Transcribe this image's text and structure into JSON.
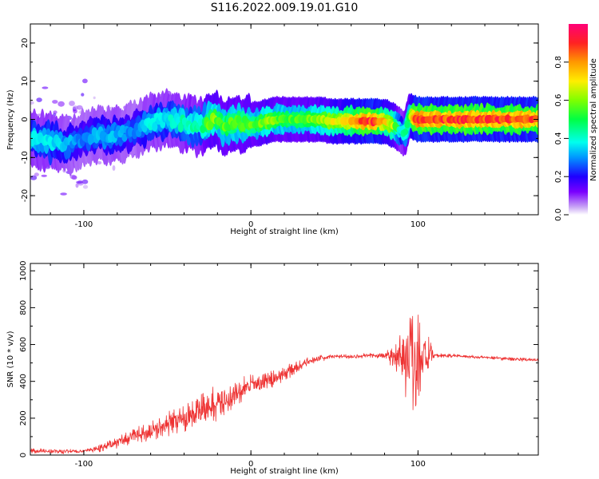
{
  "chart_data": [
    {
      "type": "heatmap",
      "title": "S116.2022.009.19.01.G10",
      "xlabel": "Height of straight line (km)",
      "ylabel": "Frequency (Hz)",
      "xlim": [
        -132,
        172
      ],
      "ylim": [
        -25,
        25
      ],
      "xticks": [
        -100,
        0,
        100
      ],
      "yticks": [
        -20,
        -10,
        0,
        10,
        20
      ],
      "colorbar": {
        "label": "Normalized spectral amplitude",
        "range": [
          0,
          1
        ],
        "ticks": [
          0.0,
          0.2,
          0.4,
          0.6,
          0.8
        ]
      },
      "ridge": {
        "x": [
          -132,
          -120,
          -110,
          -100,
          -90,
          -80,
          -70,
          -60,
          -50,
          -40,
          -30,
          -22,
          -20,
          -15,
          -10,
          -5,
          0,
          5,
          10,
          15,
          20,
          30,
          40,
          50,
          60,
          70,
          75,
          80,
          85,
          90,
          92,
          95,
          97,
          100,
          110,
          120,
          130,
          140,
          150,
          160,
          172
        ],
        "freq": [
          -5,
          -6,
          -7,
          -5,
          -4,
          -4,
          -3,
          -1,
          0,
          -1,
          -2,
          0,
          -0.5,
          -1.5,
          -1,
          -1,
          -1.5,
          -1,
          -0.5,
          0,
          0,
          0,
          0,
          -0.5,
          -0.5,
          -0.5,
          -0.5,
          -0.5,
          -1.5,
          -3,
          -4,
          1,
          0.5,
          0,
          0,
          0,
          0,
          0,
          0,
          0,
          0
        ],
        "amplitude": [
          0.4,
          0.4,
          0.35,
          0.3,
          0.35,
          0.35,
          0.3,
          0.4,
          0.4,
          0.45,
          0.45,
          0.7,
          0.6,
          0.6,
          0.6,
          0.6,
          0.6,
          0.6,
          0.7,
          0.6,
          0.6,
          0.6,
          0.65,
          0.75,
          0.85,
          0.95,
          0.95,
          0.8,
          0.7,
          0.4,
          0.5,
          0.6,
          0.9,
          1.0,
          0.95,
          0.95,
          0.95,
          0.95,
          0.95,
          0.95,
          0.95
        ]
      }
    },
    {
      "type": "line",
      "title": "",
      "xlabel": "Height of straight line (km)",
      "ylabel": "SNR (10 * v/v)",
      "xlim": [
        -132,
        172
      ],
      "ylim": [
        0,
        1040
      ],
      "xticks": [
        -100,
        0,
        100
      ],
      "yticks": [
        0,
        200,
        400,
        600,
        800,
        1000
      ],
      "series": [
        {
          "name": "SNR",
          "color": "#ee3333",
          "x": [
            -132,
            -120,
            -110,
            -100,
            -90,
            -80,
            -70,
            -60,
            -50,
            -40,
            -30,
            -20,
            -10,
            0,
            10,
            20,
            30,
            40,
            50,
            60,
            70,
            80,
            85,
            90,
            95,
            100,
            105,
            110,
            120,
            130,
            140,
            150,
            160,
            172
          ],
          "y": [
            25,
            20,
            20,
            20,
            40,
            70,
            100,
            130,
            170,
            200,
            240,
            280,
            320,
            380,
            400,
            440,
            490,
            525,
            535,
            535,
            540,
            540,
            540,
            540,
            540,
            540,
            540,
            540,
            540,
            535,
            530,
            525,
            520,
            515
          ],
          "noise": [
            20,
            15,
            15,
            10,
            25,
            35,
            45,
            60,
            75,
            85,
            105,
            110,
            95,
            70,
            60,
            50,
            30,
            20,
            15,
            15,
            15,
            25,
            90,
            150,
            420,
            360,
            150,
            15,
            12,
            12,
            12,
            12,
            12,
            12
          ]
        }
      ]
    }
  ]
}
